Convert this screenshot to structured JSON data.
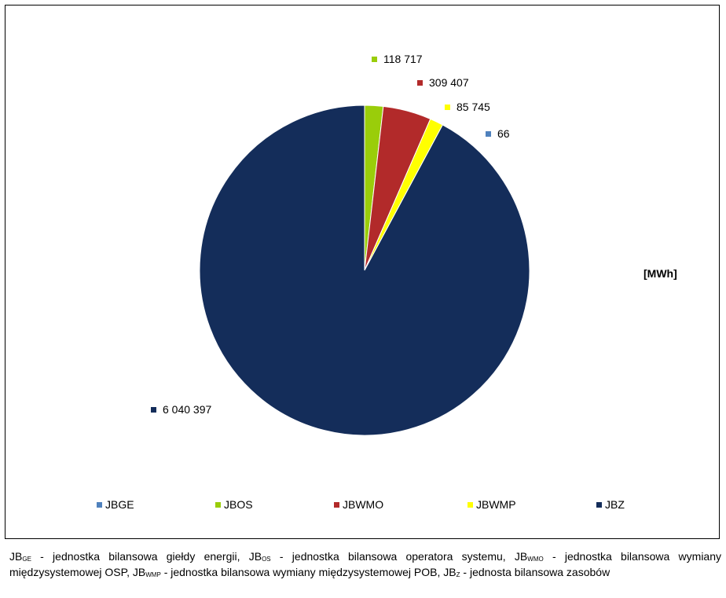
{
  "chart_data": {
    "type": "pie",
    "unit_label": "[MWh]",
    "series": [
      {
        "name": "JBGE",
        "value": 66,
        "label": "66",
        "color": "#4f81bd"
      },
      {
        "name": "JBOS",
        "value": 118717,
        "label": "118 717",
        "color": "#9acd0a"
      },
      {
        "name": "JBWMO",
        "value": 309407,
        "label": "309 407",
        "color": "#b22a2a"
      },
      {
        "name": "JBWMP",
        "value": 85745,
        "label": "85 745",
        "color": "#ffff00"
      },
      {
        "name": "JBZ",
        "value": 6040397,
        "label": "6 040 397",
        "color": "#142d5a"
      }
    ],
    "legend": [
      "JBGE",
      "JBOS",
      "JBWMO",
      "JBWMP",
      "JBZ"
    ],
    "legend_position": "bottom"
  },
  "caption": {
    "p1": "JB",
    "s1": "GE",
    "t1": " -  jednostka bilansowa giełdy energii, JB",
    "s2": "OS",
    "t2": " - jednostka bilansowa operatora systemu, JB",
    "s3": "WMO",
    "t3": " - jednostka bilansowa wymiany międzysystemowej OSP, JB",
    "s4": "WMP",
    "t4": " - jednostka bilansowa wymiany międzysystemowej POB, JB",
    "s5": "Z",
    "t5": " - jednosta bilansowa zasobów"
  }
}
